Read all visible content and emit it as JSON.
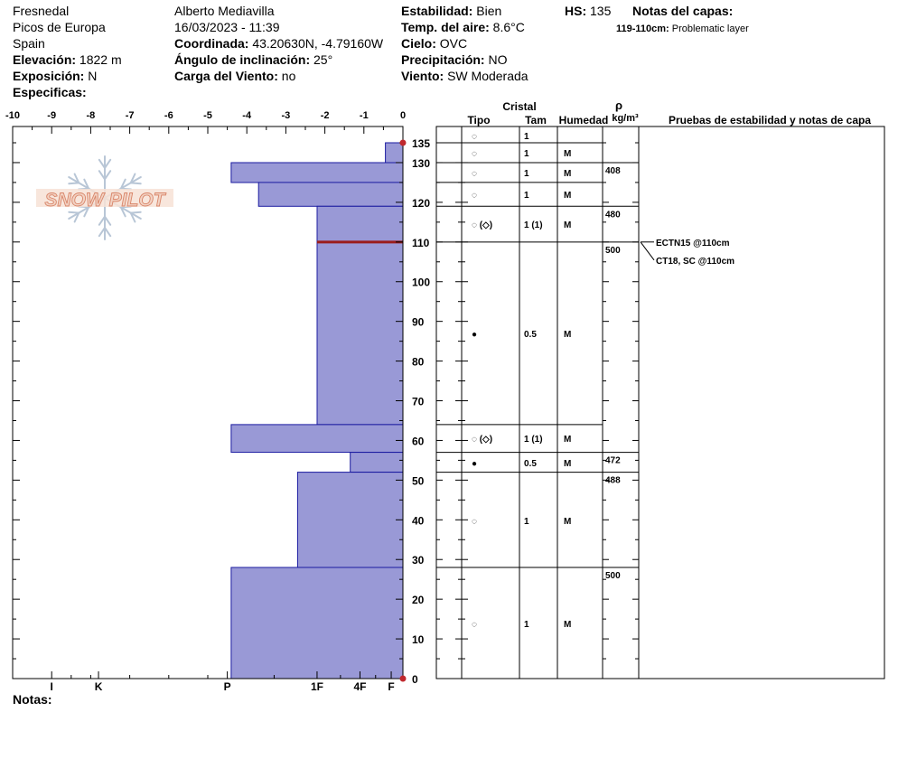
{
  "header": {
    "location_name": "Fresnedal",
    "range": "Picos de Europa",
    "country": "Spain",
    "elevation_label": "Elevación:",
    "elevation_value": "1822 m",
    "aspect_label": "Exposición:",
    "aspect_value": "N",
    "specifics_label": "Especificas:",
    "observer": "Alberto Mediavilla",
    "datetime": "16/03/2023 - 11:39",
    "coord_label": "Coordinada:",
    "coord_value": "43.20630N, -4.79160W",
    "slope_label": "Ángulo de inclinación:",
    "slope_value": "25°",
    "wind_load_label": "Carga del Viento:",
    "wind_load_value": "no",
    "stability_label": "Estabilidad:",
    "stability_value": "Bien",
    "air_temp_label": "Temp. del aire:",
    "air_temp_value": "8.6°C",
    "sky_label": "Cielo:",
    "sky_value": "OVC",
    "precip_label": "Precipitación:",
    "precip_value": "NO",
    "wind_label": "Viento:",
    "wind_value": "SW Moderada",
    "hs_label": "HS:",
    "hs_value": "135",
    "layer_notes_label": "Notas del capas:",
    "layer_note_range": "119-110cm:",
    "layer_note_text": "Problematic layer"
  },
  "logo_text": "SNOW PILOT",
  "table_headers": {
    "crystal": "Cristal",
    "type": "Tipo",
    "size": "Tam",
    "moisture": "Humedad",
    "rho": "ρ",
    "density_unit": "kg/m³",
    "tests": "Pruebas de estabilidad y notas de capa"
  },
  "notes_label": "Notas:",
  "colors": {
    "bar_fill": "#9999d6",
    "bar_stroke": "#1a1aa0",
    "weak_layer": "#9b1c1c",
    "marker": "#c0282d"
  },
  "chart_data": {
    "type": "bar",
    "orientation": "horizontal-profile",
    "x_ticks": [
      "-10",
      "-9",
      "-8",
      "-7",
      "-6",
      "-5",
      "-4",
      "-3",
      "-2",
      "-1",
      "0"
    ],
    "xlim": [
      -10,
      0
    ],
    "ylim": [
      0,
      135
    ],
    "y_ticks": [
      0,
      10,
      20,
      30,
      40,
      50,
      60,
      70,
      80,
      90,
      100,
      110,
      120,
      130,
      135
    ],
    "hardness_labels": [
      {
        "label": "I",
        "value": -9
      },
      {
        "label": "K",
        "value": -7.8
      },
      {
        "label": "P",
        "value": -4.5
      },
      {
        "label": "1F",
        "value": -2.2
      },
      {
        "label": "4F",
        "value": -1.1
      },
      {
        "label": "F",
        "value": -0.3
      }
    ],
    "layers": [
      {
        "top": 135,
        "bottom": 130,
        "hardness": -0.45
      },
      {
        "top": 130,
        "bottom": 125,
        "hardness": -4.4
      },
      {
        "top": 125,
        "bottom": 119,
        "hardness": -3.7
      },
      {
        "top": 119,
        "bottom": 110,
        "hardness": -2.2
      },
      {
        "top": 110,
        "bottom": 64,
        "hardness": -2.2
      },
      {
        "top": 64,
        "bottom": 57,
        "hardness": -4.4
      },
      {
        "top": 57,
        "bottom": 52,
        "hardness": -1.35
      },
      {
        "top": 52,
        "bottom": 28,
        "hardness": -2.7
      },
      {
        "top": 28,
        "bottom": 0,
        "hardness": -4.4
      }
    ],
    "weak_layer_depth": 110,
    "table_rows": [
      {
        "top": 135,
        "bottom": 130,
        "type": "◌",
        "size": "1",
        "moisture": "",
        "density": ""
      },
      {
        "top": 130,
        "bottom": 125,
        "type": "◌",
        "size": "1",
        "moisture": "M",
        "density": "408"
      },
      {
        "top": 125,
        "bottom": 119,
        "type": "◌",
        "size": "1",
        "moisture": "M",
        "density": ""
      },
      {
        "top": 119,
        "bottom": 110,
        "type": "◌",
        "size": "1",
        "moisture": "M",
        "density": ""
      },
      {
        "top": 110,
        "bottom": 64,
        "type": "◌ (◇)",
        "size": "1 (1)",
        "moisture": "M",
        "density": "480"
      },
      {
        "top": 64,
        "bottom": 57,
        "type": "●",
        "size": "0.5",
        "moisture": "M",
        "density": "500"
      },
      {
        "top": 57,
        "bottom": 52,
        "type": "◌ (◇)",
        "size": "1 (1)",
        "moisture": "M",
        "density": ""
      },
      {
        "top": 52,
        "bottom": 28,
        "type": "●",
        "size": "0.5",
        "moisture": "M",
        "density": "472"
      },
      {
        "top": 28,
        "bottom": 0,
        "type": "◌",
        "size": "1",
        "moisture": "M",
        "density": "488"
      }
    ],
    "density_marks": [
      {
        "depth": 130,
        "value": "408"
      },
      {
        "depth": 119,
        "value": "480"
      },
      {
        "depth": 110,
        "value": "500"
      },
      {
        "depth": 57,
        "value": "472"
      },
      {
        "depth": 52,
        "value": "488"
      },
      {
        "depth": 28,
        "value": "500"
      }
    ],
    "stability_tests": [
      {
        "depth": 110,
        "text": "ECTN15 @110cm"
      },
      {
        "depth": 110,
        "text": "CT18, SC @110cm"
      }
    ]
  }
}
